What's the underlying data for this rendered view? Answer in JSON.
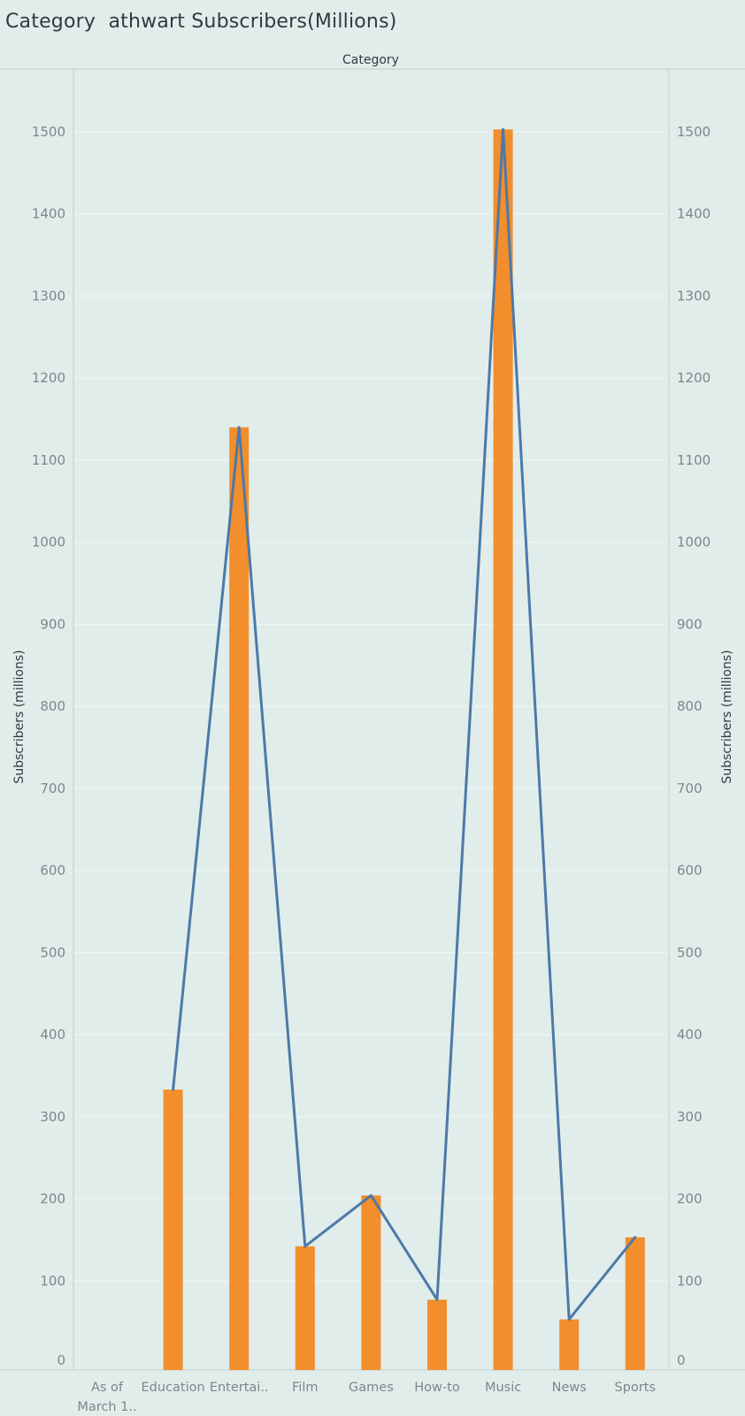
{
  "title": "Category  athwart Subscribers(Millions)",
  "chart_data": {
    "type": "bar",
    "title": "Category  athwart Subscribers(Millions)",
    "header_label": "Category",
    "xlabel": "",
    "ylabel": "Subscribers (millions)",
    "y2label": "Subscribers (millions)",
    "ylim": [
      0,
      1500
    ],
    "yticks": [
      0,
      100,
      200,
      300,
      400,
      500,
      600,
      700,
      800,
      900,
      1000,
      1100,
      1200,
      1300,
      1400,
      1500
    ],
    "grid": true,
    "categories": [
      [
        "As of",
        "March 1.."
      ],
      [
        "Education"
      ],
      [
        "Entertai.."
      ],
      [
        "Film"
      ],
      [
        "Games"
      ],
      [
        "How-to"
      ],
      [
        "Music"
      ],
      [
        "News"
      ],
      [
        "Sports"
      ]
    ],
    "series": [
      {
        "type": "bar",
        "color": "#f28e2b",
        "values": [
          null,
          333,
          1140,
          142,
          204,
          77,
          1503,
          53,
          153
        ]
      },
      {
        "type": "line",
        "color": "#4e79a7",
        "values": [
          null,
          333,
          1140,
          142,
          204,
          77,
          1503,
          53,
          153
        ]
      }
    ]
  },
  "colors": {
    "background": "#e0edeb",
    "grid": "#eef6f4",
    "axis": "#c4cfcd",
    "tick_text": "#7c8788",
    "label_text": "#2f3b3c"
  }
}
